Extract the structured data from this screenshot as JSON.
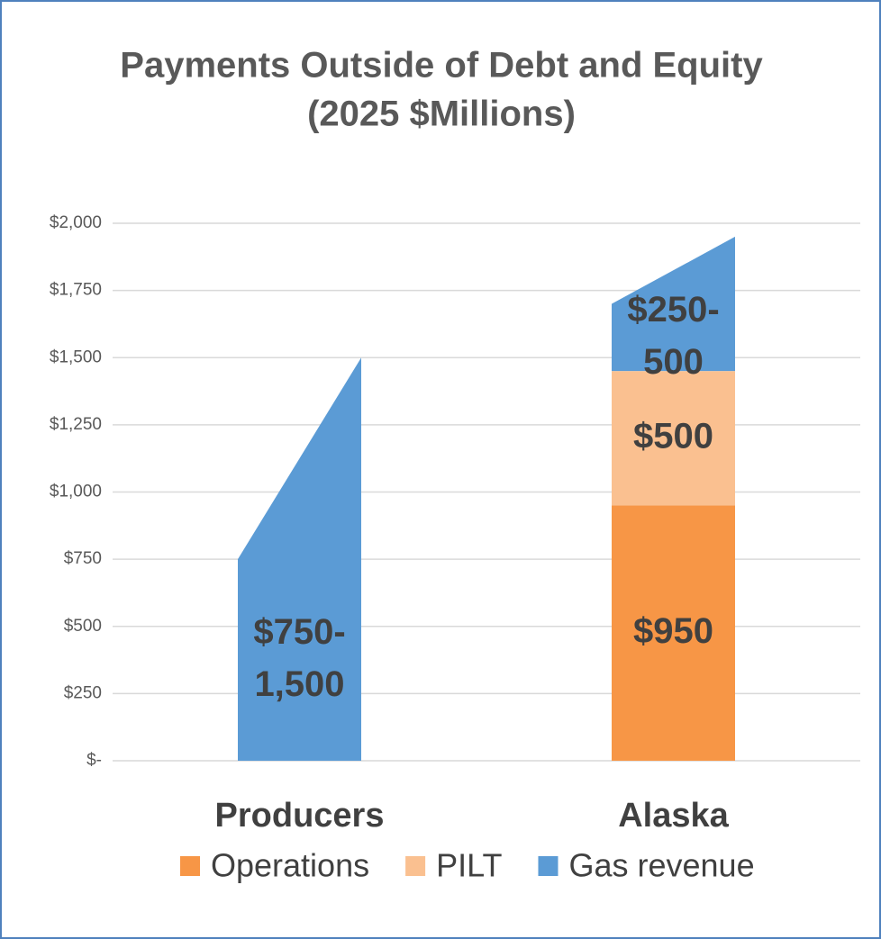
{
  "chart_data": {
    "type": "stacked_range_bar",
    "title": "Payments Outside of Debt and Equity",
    "subtitle": "(2025 $Millions)",
    "categories": [
      "Producers",
      "Alaska"
    ],
    "series": [
      {
        "name": "Operations",
        "color": "#f79646",
        "values": [
          null,
          950
        ],
        "value_labels": [
          null,
          "$950"
        ]
      },
      {
        "name": "PILT",
        "color": "#fac090",
        "values": [
          null,
          500
        ],
        "value_labels": [
          null,
          "$500"
        ]
      },
      {
        "name": "Gas revenue",
        "color": "#5b9bd5",
        "values": [
          750,
          250
        ],
        "values_max": [
          1500,
          500
        ],
        "value_labels": [
          "$750-1,500",
          "$250-500"
        ]
      }
    ],
    "ylim": [
      0,
      2000
    ],
    "yticks": [
      {
        "value": 0,
        "label": "$-"
      },
      {
        "value": 250,
        "label": "$250"
      },
      {
        "value": 500,
        "label": "$500"
      },
      {
        "value": 750,
        "label": "$750"
      },
      {
        "value": 1000,
        "label": "$1,000"
      },
      {
        "value": 1250,
        "label": "$1,250"
      },
      {
        "value": 1500,
        "label": "$1,500"
      },
      {
        "value": 1750,
        "label": "$1,750"
      },
      {
        "value": 2000,
        "label": "$2,000"
      }
    ],
    "grid": true,
    "legend": "bottom"
  }
}
